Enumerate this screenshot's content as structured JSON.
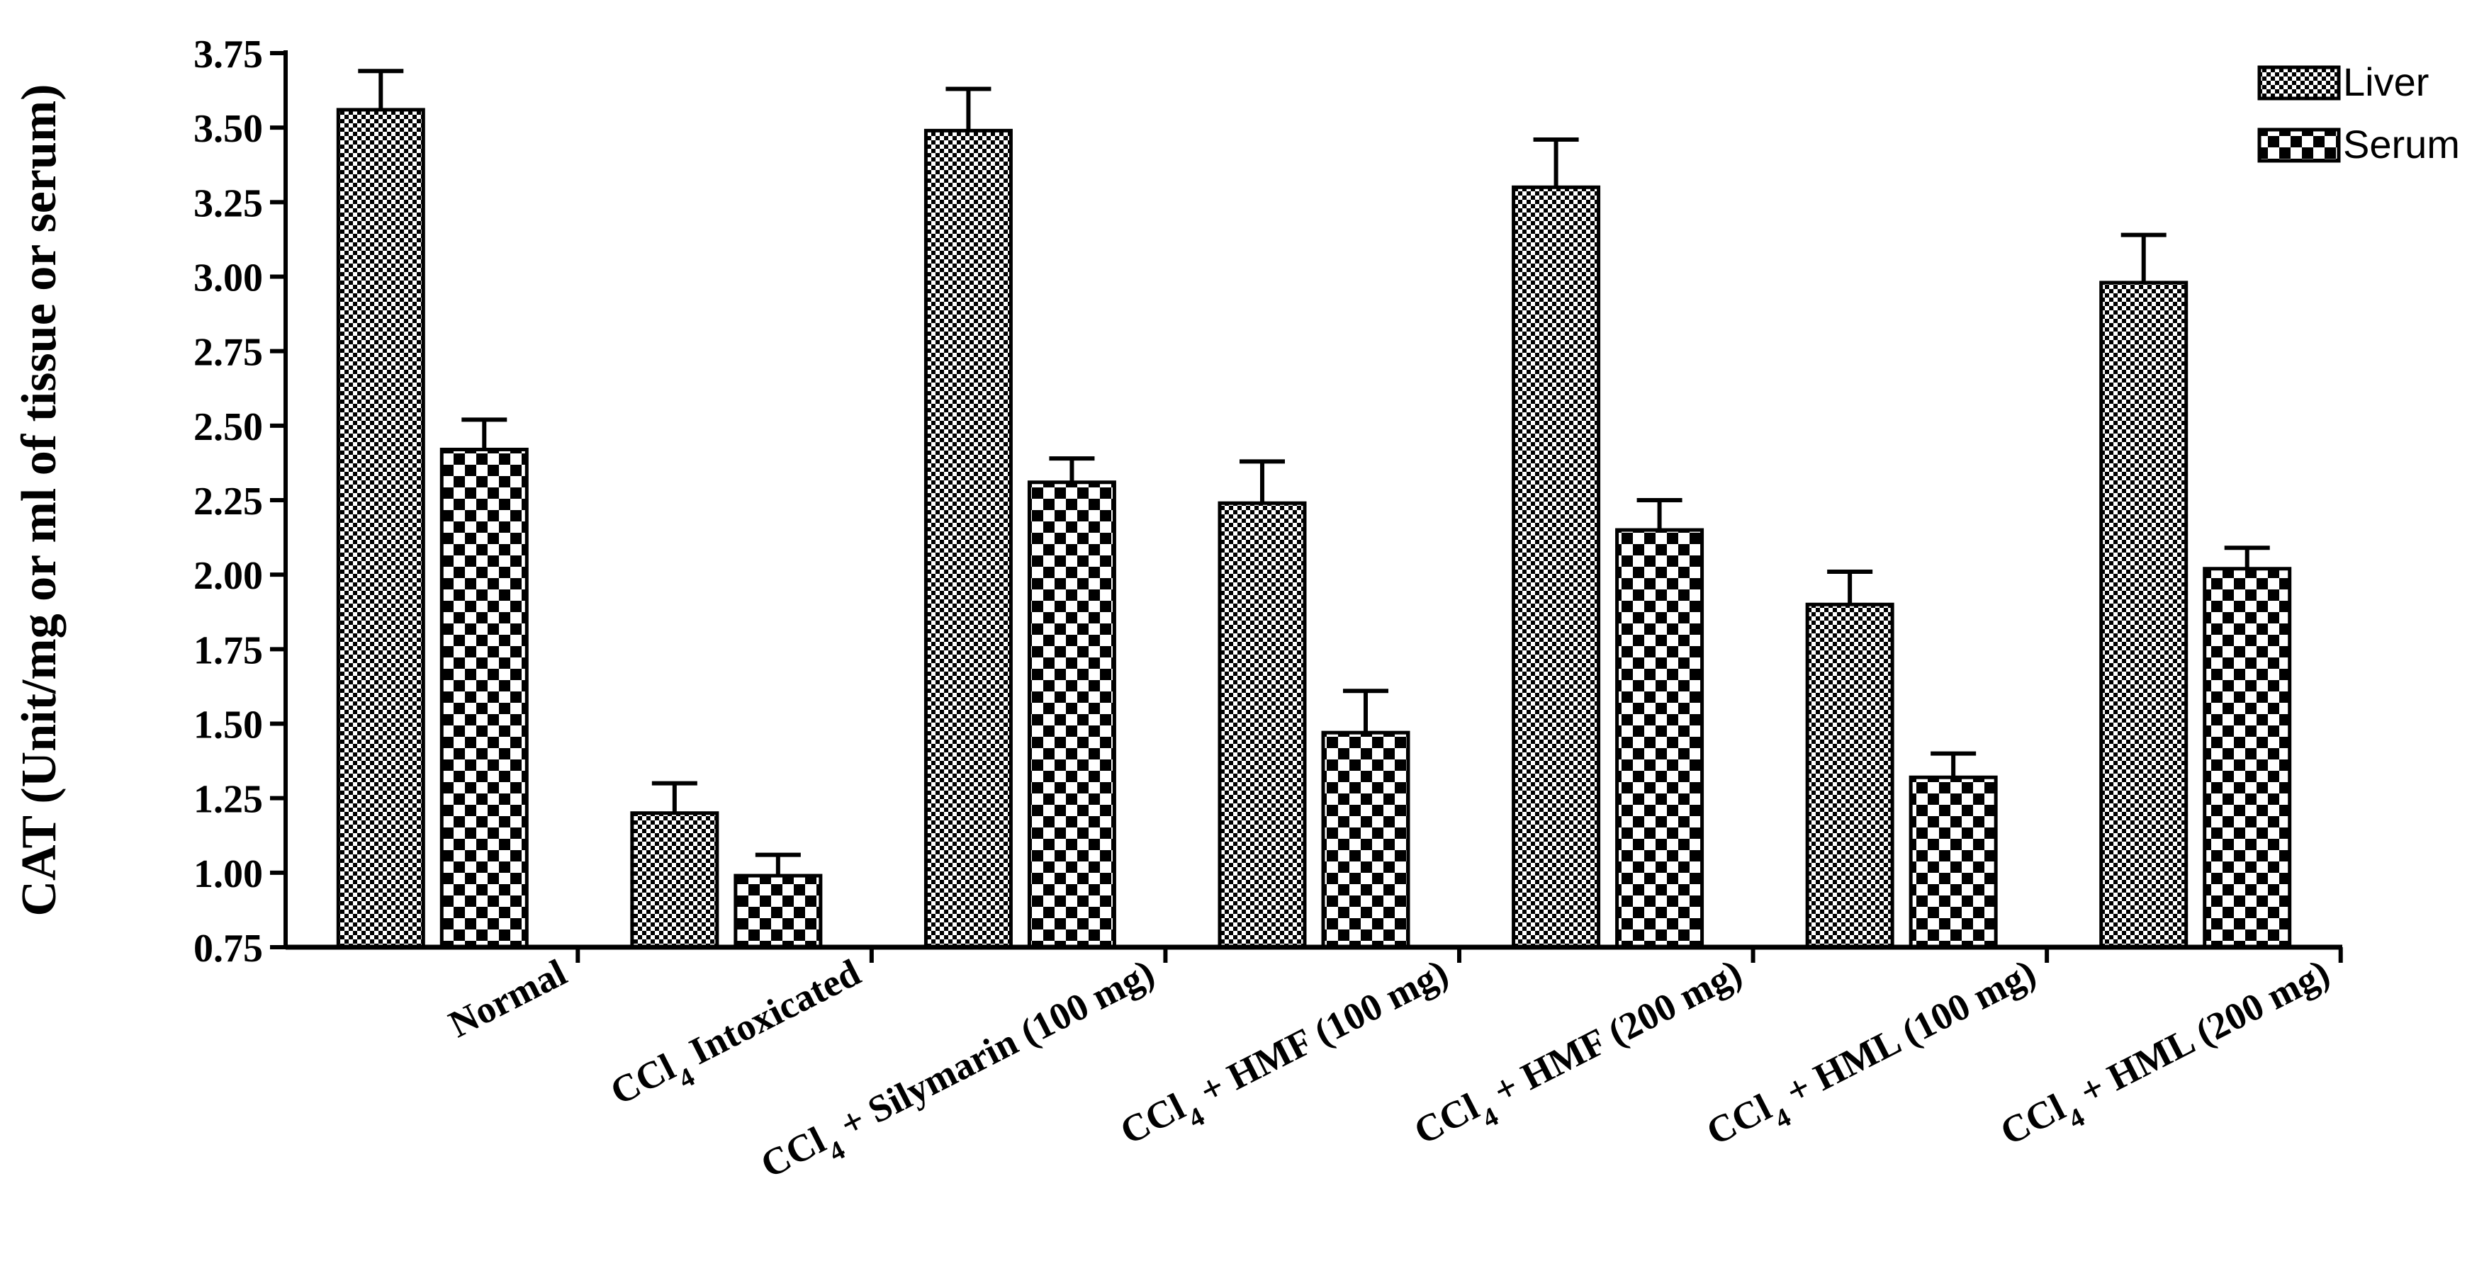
{
  "chart_data": {
    "type": "bar",
    "title": "",
    "xlabel": "",
    "ylabel": "CAT (Unit/mg or ml of tissue or serum)",
    "ylim": [
      0.75,
      3.75
    ],
    "yticks": [
      "0.75",
      "1.00",
      "1.25",
      "1.50",
      "1.75",
      "2.00",
      "2.25",
      "2.50",
      "2.75",
      "3.00",
      "3.25",
      "3.50",
      "3.75"
    ],
    "categories": [
      {
        "pre": "Normal",
        "sub": "",
        "post": ""
      },
      {
        "pre": "CCl",
        "sub": "4",
        "post": " Intoxicated"
      },
      {
        "pre": "CCl",
        "sub": "4",
        "post": " + Silymarin (100 mg)"
      },
      {
        "pre": "CCl",
        "sub": "4",
        "post": " + HMF (100 mg)"
      },
      {
        "pre": "CCl",
        "sub": "4",
        "post": " + HMF (200 mg)"
      },
      {
        "pre": "CCl",
        "sub": "4",
        "post": " + HML (100 mg)"
      },
      {
        "pre": "CCl",
        "sub": "4",
        "post": " + HML (200 mg)"
      }
    ],
    "series": [
      {
        "name": "Liver",
        "pattern": "fine-check",
        "values": [
          3.56,
          1.2,
          3.49,
          2.24,
          3.3,
          1.9,
          2.98
        ],
        "errors": [
          0.13,
          0.1,
          0.14,
          0.14,
          0.16,
          0.11,
          0.16
        ]
      },
      {
        "name": "Serum",
        "pattern": "coarse-check",
        "values": [
          2.42,
          0.99,
          2.31,
          1.47,
          2.15,
          1.32,
          2.02
        ],
        "errors": [
          0.1,
          0.07,
          0.08,
          0.14,
          0.1,
          0.08,
          0.07
        ]
      }
    ],
    "legend_position": "top-right"
  }
}
